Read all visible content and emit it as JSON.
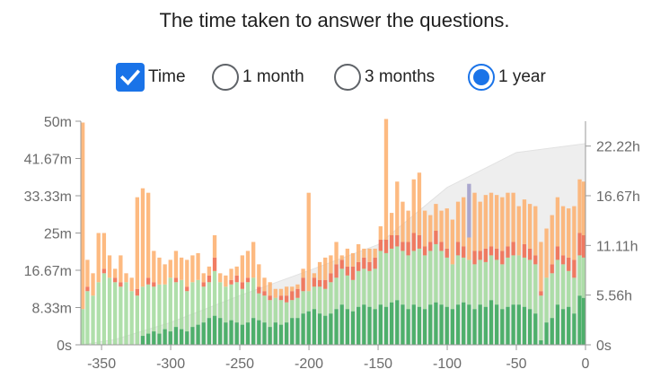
{
  "title": "The time taken to answer the questions.",
  "controls": {
    "time": {
      "label": "Time",
      "checked": true
    },
    "options": [
      {
        "label": "1 month",
        "selected": false
      },
      {
        "label": "3 months",
        "selected": false
      },
      {
        "label": "1 year",
        "selected": true
      }
    ]
  },
  "colors": {
    "accent": "#1a73e8",
    "dark_green": "#31a354",
    "light_green": "#a1d99b",
    "red": "#ef6548",
    "orange": "#fdae6b",
    "purple": "#9e9ac8",
    "cumulative_area": "#eeeeee"
  },
  "chart_data": {
    "type": "bar",
    "stacked": true,
    "x_axis": {
      "min": -365,
      "max": 0,
      "ticks": [
        "-350",
        "-300",
        "-250",
        "-200",
        "-150",
        "-100",
        "-50",
        "0"
      ],
      "tick_values": [
        -350,
        -300,
        -250,
        -200,
        -150,
        -100,
        -50,
        0
      ]
    },
    "y_axis_left": {
      "min": 0,
      "max": 50,
      "unit": "minutes",
      "ticks": [
        "0s",
        "8.33m",
        "16.67m",
        "25m",
        "33.33m",
        "41.67m",
        "50m"
      ]
    },
    "y_axis_right": {
      "min": 0,
      "max": 25,
      "unit": "hours",
      "ticks": [
        "0s",
        "5.56h",
        "11.11h",
        "16.67h",
        "22.22h"
      ],
      "tick_values": [
        0,
        5.56,
        11.11,
        16.67,
        22.22
      ]
    },
    "grid": false,
    "bar_width_days": 3.2,
    "series": [
      {
        "key": "dark_green",
        "color": "#31a354",
        "x": [
          -320,
          -316,
          -312,
          -308,
          -304,
          -300,
          -296,
          -292,
          -288,
          -284,
          -280,
          -276,
          -272,
          -268,
          -264,
          -260,
          -256,
          -252,
          -248,
          -244,
          -240,
          -236,
          -232,
          -228,
          -224,
          -220,
          -216,
          -212,
          -208,
          -204,
          -200,
          -196,
          -192,
          -188,
          -184,
          -180,
          -176,
          -172,
          -168,
          -164,
          -160,
          -156,
          -152,
          -148,
          -144,
          -140,
          -136,
          -132,
          -128,
          -124,
          -120,
          -116,
          -112,
          -108,
          -104,
          -100,
          -96,
          -92,
          -88,
          -84,
          -80,
          -76,
          -72,
          -68,
          -64,
          -60,
          -56,
          -52,
          -48,
          -44,
          -40,
          -36,
          -32,
          -28,
          -24,
          -20,
          -16,
          -12,
          -8,
          -4,
          -1
        ],
        "y": [
          2,
          2.5,
          3,
          2.5,
          3.5,
          3,
          4,
          3.5,
          3,
          4,
          4.5,
          5,
          6,
          6.5,
          6,
          5,
          5.5,
          5,
          4.5,
          5,
          6,
          5.5,
          5,
          4,
          5,
          4.5,
          5,
          6,
          6,
          7,
          7.5,
          8,
          7,
          6.5,
          7,
          8,
          9,
          8,
          7.5,
          8.5,
          9,
          8.5,
          8,
          9,
          8.5,
          9.5,
          10,
          9,
          8,
          9,
          8.5,
          8,
          9,
          9.5,
          9,
          8.5,
          8,
          9,
          9.5,
          9,
          8,
          9,
          8.5,
          10,
          9,
          8,
          8.5,
          9,
          9,
          8.5,
          8,
          7,
          1,
          5,
          6,
          9,
          8,
          8.5,
          7,
          11,
          10.5
        ]
      },
      {
        "key": "light_green",
        "color": "#a1d99b",
        "x": [
          -364,
          -360,
          -356,
          -352,
          -348,
          -344,
          -340,
          -336,
          -332,
          -328,
          -324,
          -320,
          -316,
          -312,
          -308,
          -304,
          -300,
          -296,
          -292,
          -288,
          -284,
          -280,
          -276,
          -272,
          -268,
          -264,
          -260,
          -256,
          -252,
          -248,
          -244,
          -240,
          -236,
          -232,
          -228,
          -224,
          -220,
          -216,
          -212,
          -208,
          -204,
          -200,
          -196,
          -192,
          -188,
          -184,
          -180,
          -176,
          -172,
          -168,
          -164,
          -160,
          -156,
          -152,
          -148,
          -144,
          -140,
          -136,
          -132,
          -128,
          -124,
          -120,
          -116,
          -112,
          -108,
          -104,
          -100,
          -96,
          -92,
          -88,
          -84,
          -80,
          -76,
          -72,
          -68,
          -64,
          -60,
          -56,
          -52,
          -48,
          -44,
          -40,
          -36,
          -32,
          -28,
          -24,
          -20,
          -16,
          -12,
          -8,
          -4,
          -1
        ],
        "y": [
          8,
          12,
          11,
          14,
          16,
          15,
          14,
          13,
          14,
          12,
          11,
          11,
          11,
          10,
          11,
          10,
          12,
          10,
          11,
          9,
          10,
          10,
          8,
          8,
          10,
          8,
          8,
          8,
          9,
          8,
          9,
          9,
          6,
          6,
          6,
          5.5,
          5.5,
          4.5,
          4,
          4.5,
          5,
          4.5,
          5,
          6,
          6,
          7,
          7,
          8,
          7.5,
          7,
          8,
          8,
          8,
          9,
          12,
          12,
          12,
          12,
          12,
          12,
          12,
          13,
          12,
          12,
          13,
          12,
          11,
          10,
          11,
          10,
          10,
          10,
          10,
          10,
          10,
          10,
          10,
          11,
          11,
          11,
          11,
          11,
          11,
          10,
          10,
          10,
          10,
          10,
          8,
          8,
          9,
          9
        ]
      },
      {
        "key": "red",
        "color": "#ef6548",
        "x": [
          -360,
          -348,
          -340,
          -336,
          -324,
          -316,
          -312,
          -296,
          -288,
          -276,
          -272,
          -268,
          -256,
          -252,
          -248,
          -244,
          -236,
          -232,
          -228,
          -220,
          -216,
          -212,
          -208,
          -204,
          -196,
          -192,
          -188,
          -184,
          -180,
          -176,
          -172,
          -168,
          -164,
          -160,
          -156,
          -152,
          -148,
          -144,
          -140,
          -136,
          -132,
          -128,
          -124,
          -120,
          -116,
          -112,
          -108,
          -104,
          -100,
          -92,
          -88,
          -80,
          -76,
          -72,
          -68,
          -64,
          -60,
          -56,
          -52,
          -44,
          -40,
          -36,
          -32,
          -24,
          -20,
          -16,
          -12,
          -8,
          -4,
          -1
        ],
        "y": [
          1,
          1,
          1,
          1,
          1.5,
          1.5,
          1,
          1,
          1,
          1,
          1.5,
          3,
          1,
          1.5,
          1.5,
          1,
          1.5,
          1,
          1,
          1,
          1.5,
          2,
          2,
          3,
          2,
          1.5,
          2,
          2,
          3,
          2,
          2,
          3,
          2,
          2.5,
          2,
          2.5,
          2.5,
          3,
          3,
          2.5,
          2,
          3,
          4,
          3,
          2,
          2,
          3,
          2,
          2,
          3,
          2.5,
          3,
          2,
          3,
          2,
          2.5,
          3,
          2.5,
          3,
          3,
          2.5,
          2,
          1,
          2,
          3,
          2,
          3,
          4,
          5,
          5
        ]
      },
      {
        "key": "orange",
        "color": "#fdae6b",
        "x": [
          -364,
          -360,
          -356,
          -352,
          -348,
          -344,
          -340,
          -336,
          -332,
          -328,
          -324,
          -320,
          -316,
          -312,
          -308,
          -304,
          -300,
          -296,
          -292,
          -288,
          -284,
          -280,
          -276,
          -272,
          -268,
          -264,
          -260,
          -256,
          -252,
          -248,
          -244,
          -240,
          -236,
          -232,
          -228,
          -224,
          -220,
          -216,
          -212,
          -208,
          -204,
          -200,
          -196,
          -192,
          -188,
          -184,
          -180,
          -176,
          -172,
          -168,
          -164,
          -160,
          -156,
          -152,
          -148,
          -144,
          -140,
          -136,
          -132,
          -128,
          -124,
          -120,
          -116,
          -112,
          -108,
          -104,
          -100,
          -96,
          -92,
          -88,
          -84,
          -80,
          -76,
          -72,
          -68,
          -64,
          -60,
          -56,
          -52,
          -48,
          -44,
          -40,
          -36,
          -32,
          -28,
          -24,
          -20,
          -16,
          -12,
          -8,
          -4,
          -1
        ],
        "y": [
          41.7,
          6,
          5,
          11,
          8,
          5,
          2,
          6,
          2,
          3,
          20.5,
          22,
          19,
          7,
          6,
          4.5,
          4,
          6,
          5,
          6,
          6,
          6,
          2,
          2,
          5,
          2,
          2.5,
          2.5,
          2,
          6,
          6,
          8,
          5,
          3,
          3,
          2,
          1.5,
          2,
          1,
          1,
          2,
          22,
          1,
          4,
          5,
          4,
          5,
          1,
          4,
          3,
          4,
          2,
          3,
          2,
          3,
          27,
          5,
          12,
          9,
          7,
          12,
          14,
          8,
          6,
          6,
          7,
          9,
          10,
          9,
          11,
          5,
          13,
          11,
          12,
          12,
          12,
          12,
          12,
          11,
          11,
          10,
          10,
          11,
          11,
          11,
          11,
          11,
          11,
          11,
          12,
          12,
          12
        ]
      },
      {
        "key": "purple",
        "color": "#9e9ac8",
        "x": [
          -84
        ],
        "y": [
          12
        ]
      }
    ],
    "cumulative": {
      "axis": "right",
      "x": [
        -365,
        -340,
        -300,
        -250,
        -200,
        -150,
        -100,
        -50,
        0
      ],
      "y": [
        0,
        0.6,
        2.5,
        5.5,
        8.3,
        11.2,
        17.6,
        21.5,
        22.5
      ]
    }
  }
}
